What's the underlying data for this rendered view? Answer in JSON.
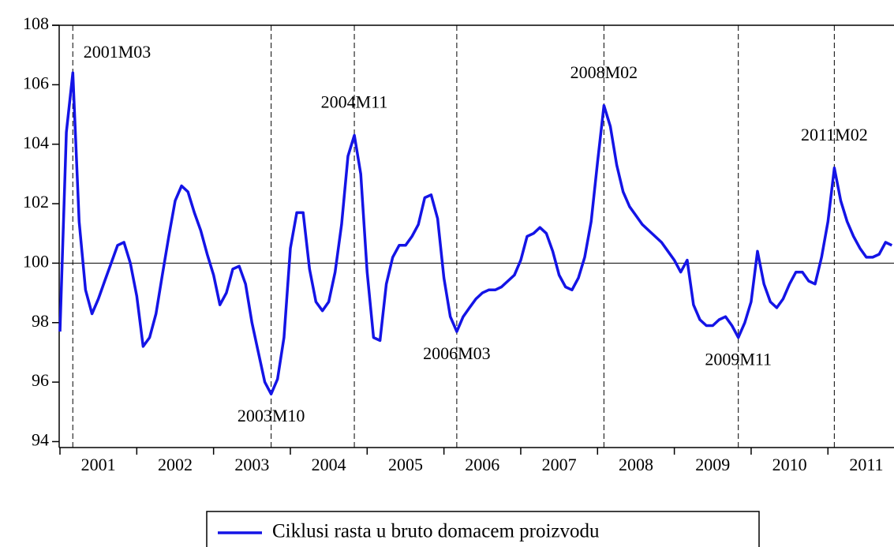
{
  "chart_data": {
    "type": "line",
    "x": [
      2001.0,
      2001.083,
      2001.167,
      2001.25,
      2001.333,
      2001.417,
      2001.5,
      2001.583,
      2001.667,
      2001.75,
      2001.833,
      2001.917,
      2002.0,
      2002.083,
      2002.167,
      2002.25,
      2002.333,
      2002.417,
      2002.5,
      2002.583,
      2002.667,
      2002.75,
      2002.833,
      2002.917,
      2003.0,
      2003.083,
      2003.167,
      2003.25,
      2003.333,
      2003.417,
      2003.5,
      2003.583,
      2003.667,
      2003.75,
      2003.833,
      2003.917,
      2004.0,
      2004.083,
      2004.167,
      2004.25,
      2004.333,
      2004.417,
      2004.5,
      2004.583,
      2004.667,
      2004.75,
      2004.833,
      2004.917,
      2005.0,
      2005.083,
      2005.167,
      2005.25,
      2005.333,
      2005.417,
      2005.5,
      2005.583,
      2005.667,
      2005.75,
      2005.833,
      2005.917,
      2006.0,
      2006.083,
      2006.167,
      2006.25,
      2006.333,
      2006.417,
      2006.5,
      2006.583,
      2006.667,
      2006.75,
      2006.833,
      2006.917,
      2007.0,
      2007.083,
      2007.167,
      2007.25,
      2007.333,
      2007.417,
      2007.5,
      2007.583,
      2007.667,
      2007.75,
      2007.833,
      2007.917,
      2008.0,
      2008.083,
      2008.167,
      2008.25,
      2008.333,
      2008.417,
      2008.5,
      2008.583,
      2008.667,
      2008.75,
      2008.833,
      2008.917,
      2009.0,
      2009.083,
      2009.167,
      2009.25,
      2009.333,
      2009.417,
      2009.5,
      2009.583,
      2009.667,
      2009.75,
      2009.833,
      2009.917,
      2010.0,
      2010.083,
      2010.167,
      2010.25,
      2010.333,
      2010.417,
      2010.5,
      2010.583,
      2010.667,
      2010.75,
      2010.833,
      2010.917,
      2011.0,
      2011.083,
      2011.167,
      2011.25,
      2011.333,
      2011.417,
      2011.5,
      2011.583,
      2011.667,
      2011.75,
      2011.833
    ],
    "series": [
      {
        "name": "Ciklusi rasta u bruto domacem proizvodu",
        "color": "#1414e6",
        "values": [
          97.7,
          104.4,
          106.4,
          101.4,
          99.1,
          98.3,
          98.8,
          99.4,
          100.0,
          100.6,
          100.7,
          100.0,
          98.9,
          97.2,
          97.5,
          98.3,
          99.6,
          100.9,
          102.1,
          102.6,
          102.4,
          101.7,
          101.1,
          100.3,
          99.6,
          98.6,
          99.0,
          99.8,
          99.9,
          99.3,
          98.0,
          97.0,
          96.0,
          95.6,
          96.1,
          97.5,
          100.5,
          101.7,
          101.7,
          99.8,
          98.7,
          98.4,
          98.7,
          99.7,
          101.3,
          103.6,
          104.3,
          103.0,
          99.7,
          97.5,
          97.4,
          99.3,
          100.2,
          100.6,
          100.6,
          100.9,
          101.3,
          102.2,
          102.3,
          101.5,
          99.5,
          98.2,
          97.7,
          98.2,
          98.5,
          98.8,
          99.0,
          99.1,
          99.1,
          99.2,
          99.4,
          99.6,
          100.1,
          100.9,
          101.0,
          101.2,
          101.0,
          100.4,
          99.6,
          99.2,
          99.1,
          99.5,
          100.2,
          101.4,
          103.4,
          105.3,
          104.6,
          103.3,
          102.4,
          101.9,
          101.6,
          101.3,
          101.1,
          100.9,
          100.7,
          100.4,
          100.1,
          99.7,
          100.1,
          98.6,
          98.1,
          97.9,
          97.9,
          98.1,
          98.2,
          97.9,
          97.5,
          98.0,
          98.7,
          100.4,
          99.3,
          98.7,
          98.5,
          98.8,
          99.3,
          99.7,
          99.7,
          99.4,
          99.3,
          100.2,
          101.4,
          103.2,
          102.1,
          101.4,
          100.9,
          100.5,
          100.2,
          100.2,
          100.3,
          100.7,
          100.6
        ]
      }
    ],
    "xlim": [
      2001,
      2011.85
    ],
    "xticks": [
      {
        "value": 2001,
        "label": "2001"
      },
      {
        "value": 2002,
        "label": "2002"
      },
      {
        "value": 2003,
        "label": "2003"
      },
      {
        "value": 2004,
        "label": "2004"
      },
      {
        "value": 2005,
        "label": "2005"
      },
      {
        "value": 2006,
        "label": "2006"
      },
      {
        "value": 2007,
        "label": "2007"
      },
      {
        "value": 2008,
        "label": "2008"
      },
      {
        "value": 2009,
        "label": "2009"
      },
      {
        "value": 2010,
        "label": "2010"
      },
      {
        "value": 2011,
        "label": "2011"
      }
    ],
    "ylim": [
      93.8,
      108
    ],
    "yticks": [
      94,
      96,
      98,
      100,
      102,
      104,
      106,
      108
    ],
    "reference_line": 100,
    "annotations": [
      {
        "text": "2001M03",
        "x": 2001.167
      },
      {
        "text": "2003M10",
        "x": 2003.75
      },
      {
        "text": "2004M11",
        "x": 2004.833
      },
      {
        "text": "2006M03",
        "x": 2006.167
      },
      {
        "text": "2008M02",
        "x": 2008.083
      },
      {
        "text": "2009M11",
        "x": 2009.833
      },
      {
        "text": "2011M02",
        "x": 2011.083
      }
    ],
    "legend": "bottom"
  }
}
